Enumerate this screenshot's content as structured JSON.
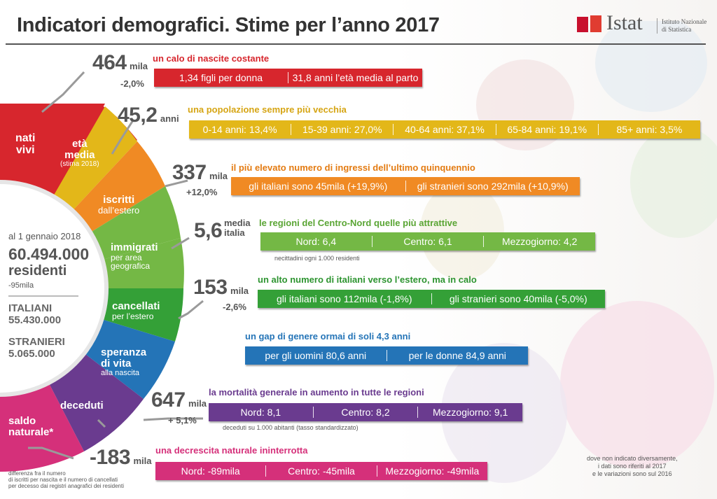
{
  "title": "Indicatori demografici. Stime per l’anno 2017",
  "logo": {
    "word": "Istat",
    "sub_line1": "Istituto Nazionale",
    "sub_line2": "di Statistica"
  },
  "center": {
    "date_label": "al 1 gennaio 2018",
    "residents_value": "60.494.000",
    "residents_label": "residenti",
    "residents_change": "-95mila",
    "italiani_label": "ITALIANI",
    "italiani_value": "55.430.000",
    "stranieri_label": "STRANIERI",
    "stranieri_value": "5.065.000"
  },
  "wheel": {
    "nati": {
      "line1": "nati",
      "line2": "vivi"
    },
    "eta": {
      "line1": "età",
      "line2": "media",
      "line3": "(stima 2018)"
    },
    "iscritti": {
      "line1": "iscritti",
      "line2": "dall’estero"
    },
    "immigrati": {
      "line1": "immigrati",
      "line2": "per area",
      "line3": "geografica"
    },
    "cancellati": {
      "line1": "cancellati",
      "line2": "per l’estero"
    },
    "speranza": {
      "line1": "speranza",
      "line2": "di vita",
      "line3": "alla nascita"
    },
    "deceduti": {
      "line1": "deceduti"
    },
    "saldo": {
      "line1": "saldo",
      "line2": "naturale*"
    }
  },
  "colors": {
    "red": "#d7262d",
    "yellow": "#e3b719",
    "orange": "#f08a24",
    "green_light": "#74b845",
    "green": "#34a037",
    "blue": "#2474b7",
    "purple": "#6a3b8f",
    "magenta": "#d5307a"
  },
  "rows": {
    "births": {
      "value": "464",
      "unit": "mila",
      "change": "-2,0%",
      "headline": "un calo di nascite costante",
      "seg1": "1,34 figli per donna",
      "seg2": "31,8 anni l’età media al parto"
    },
    "age": {
      "value": "45,2",
      "unit": "anni",
      "headline": "una popolazione sempre più vecchia",
      "segs": [
        "0-14 anni: 13,4%",
        "15-39 anni: 27,0%",
        "40-64 anni: 37,1%",
        "65-84 anni: 19,1%",
        "85+ anni: 3,5%"
      ]
    },
    "immigration": {
      "value": "337",
      "unit": "mila",
      "change": "+12,0%",
      "headline": "il più elevato numero di ingressi dell’ultimo quinquennio",
      "seg1": "gli italiani sono 45mila (+19,9%)",
      "seg2": "gli stranieri sono 292mila (+10,9%)"
    },
    "internal": {
      "value": "5,6",
      "unit_line1": "media",
      "unit_line2": "italia",
      "headline": "le regioni del Centro-Nord quelle più attrattive",
      "segs": [
        "Nord: 6,4",
        "Centro: 6,1",
        "Mezzogiorno: 4,2"
      ],
      "note": "necittadini ogni 1.000 residenti"
    },
    "emigration": {
      "value": "153",
      "unit": "mila",
      "change": "-2,6%",
      "headline": "un alto numero di italiani verso l’estero, ma in calo",
      "seg1": "gli italiani sono 112mila (-1,8%)",
      "seg2": "gli stranieri sono 40mila (-5,0%)"
    },
    "life": {
      "headline": "un gap di genere ormai di soli 4,3 anni",
      "seg1": "per gli uomini 80,6 anni",
      "seg2": "per le donne 84,9 anni"
    },
    "deaths": {
      "value": "647",
      "unit": "mila",
      "change": "+ 5,1%",
      "headline": "la mortalità generale in aumento in tutte le regioni",
      "segs": [
        "Nord: 8,1",
        "Centro: 8,2",
        "Mezzogiorno: 9,1"
      ],
      "note": "deceduti su 1.000 abitanti (tasso standardizzato)"
    },
    "natural": {
      "value": "-183",
      "unit": "mila",
      "headline": "una decrescita naturale ininterrotta",
      "segs": [
        "Nord: -89mila",
        "Centro: -45mila",
        "Mezzogiorno: -49mila"
      ]
    }
  },
  "footnote": {
    "line1": "differenza fra il numero",
    "line2": "di iscritti per nascita e il numero di cancellati",
    "line3": "per decesso dai registri anagrafici dei residenti"
  },
  "source_note": {
    "line1": "dove non indicato diversamente,",
    "line2": "i dati sono riferiti al 2017",
    "line3": "e le variazioni sono sul 2016"
  }
}
